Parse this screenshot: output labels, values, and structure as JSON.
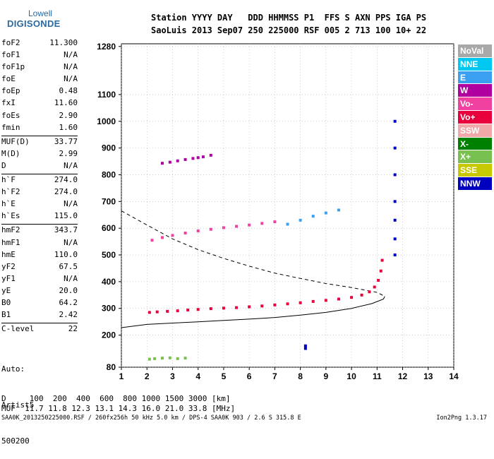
{
  "logo": {
    "top": "Lowell",
    "bottom": "DIGISONDE"
  },
  "header": {
    "line1": "Station YYYY DAY   DDD HHMMSS P1  FFS S AXN PPS IGA PS",
    "line2": "SaoLuis 2013 Sep07 250 225000 RSF 005 2 713 100 10+ 22"
  },
  "params": [
    [
      {
        "name": "foF2",
        "value": "11.300"
      },
      {
        "name": "foF1",
        "value": "N/A"
      },
      {
        "name": "foF1p",
        "value": "N/A"
      },
      {
        "name": "foE",
        "value": "N/A"
      },
      {
        "name": "foEp",
        "value": "0.48"
      },
      {
        "name": "fxI",
        "value": "11.60"
      },
      {
        "name": "foEs",
        "value": "2.90"
      },
      {
        "name": "fmin",
        "value": "1.60"
      }
    ],
    [
      {
        "name": "MUF(D)",
        "value": "33.77"
      },
      {
        "name": "M(D)",
        "value": "2.99"
      },
      {
        "name": "D",
        "value": "N/A"
      }
    ],
    [
      {
        "name": "h`F",
        "value": "274.0"
      },
      {
        "name": "h`F2",
        "value": "274.0"
      },
      {
        "name": "h`E",
        "value": "N/A"
      },
      {
        "name": "h`Es",
        "value": "115.0"
      }
    ],
    [
      {
        "name": "hmF2",
        "value": "343.7"
      },
      {
        "name": "hmF1",
        "value": "N/A"
      },
      {
        "name": "hmE",
        "value": "110.0"
      },
      {
        "name": "yF2",
        "value": "67.5"
      },
      {
        "name": "yF1",
        "value": "N/A"
      },
      {
        "name": "yE",
        "value": "20.0"
      },
      {
        "name": "B0",
        "value": "64.2"
      },
      {
        "name": "B1",
        "value": "2.42"
      }
    ],
    [
      {
        "name": "C-level",
        "value": "22"
      }
    ]
  ],
  "auto": {
    "line1": "Auto:",
    "line2": "Artist5",
    "line3": "500200"
  },
  "legend": [
    {
      "label": "NoVal",
      "color": "#a8a8a8"
    },
    {
      "label": "NNE",
      "color": "#00c8f0"
    },
    {
      "label": "E",
      "color": "#3ca0f0"
    },
    {
      "label": "W",
      "color": "#b000a0"
    },
    {
      "label": "Vo-",
      "color": "#f040a0"
    },
    {
      "label": "Vo+",
      "color": "#e8003c"
    },
    {
      "label": "SSW",
      "color": "#f0a8a8"
    },
    {
      "label": "X-",
      "color": "#008000"
    },
    {
      "label": "X+",
      "color": "#78c050"
    },
    {
      "label": "SSE",
      "color": "#c8c800"
    },
    {
      "label": "NNW",
      "color": "#0000c0"
    }
  ],
  "bottom": {
    "line1": "D     100  200  400  600  800 1000 1500 3000 [km]",
    "line2": "MUF  11.7 11.8 12.3 13.1 14.3 16.0 21.0 33.8 [MHz]"
  },
  "footer": {
    "left": "SAA0K_2013250225000.RSF / 260fx256h 50 kHz 5.0 km / DPS-4 SAA0K 903 / 2.6 S 315.8 E",
    "right": "Ion2Png 1.3.17"
  },
  "chart_data": {
    "type": "scatter",
    "xlim": [
      1,
      14
    ],
    "ylim": [
      80,
      1290
    ],
    "x_ticks": [
      1,
      2,
      3,
      4,
      5,
      6,
      7,
      8,
      9,
      10,
      11,
      12,
      13,
      14
    ],
    "y_ticks": [
      80,
      200,
      300,
      400,
      500,
      600,
      700,
      800,
      900,
      1000,
      1100,
      1280
    ],
    "grid": true,
    "series": [
      {
        "name": "Vo+",
        "color": "#e8003c",
        "points": [
          [
            2.1,
            285
          ],
          [
            2.4,
            287
          ],
          [
            2.8,
            289
          ],
          [
            3.2,
            291
          ],
          [
            3.6,
            294
          ],
          [
            4.0,
            296
          ],
          [
            4.5,
            299
          ],
          [
            5.0,
            301
          ],
          [
            5.5,
            303
          ],
          [
            6.0,
            306
          ],
          [
            6.5,
            309
          ],
          [
            7.0,
            313
          ],
          [
            7.5,
            317
          ],
          [
            8.0,
            321
          ],
          [
            8.5,
            326
          ],
          [
            9.0,
            330
          ],
          [
            9.5,
            335
          ],
          [
            10.0,
            341
          ],
          [
            10.4,
            350
          ],
          [
            10.7,
            362
          ],
          [
            10.9,
            380
          ],
          [
            11.05,
            405
          ],
          [
            11.15,
            440
          ],
          [
            11.2,
            480
          ]
        ]
      },
      {
        "name": "W",
        "color": "#b000a0",
        "points": [
          [
            2.6,
            843
          ],
          [
            2.9,
            847
          ],
          [
            3.2,
            852
          ],
          [
            3.5,
            857
          ],
          [
            3.8,
            861
          ],
          [
            4.0,
            864
          ],
          [
            4.2,
            867
          ],
          [
            4.5,
            873
          ]
        ]
      },
      {
        "name": "E",
        "color": "#3ca0f0",
        "points": [
          [
            7.5,
            615
          ],
          [
            8.0,
            630
          ],
          [
            8.5,
            645
          ],
          [
            9.0,
            657
          ],
          [
            9.5,
            668
          ]
        ]
      },
      {
        "name": "Vo-",
        "color": "#f040a0",
        "points": [
          [
            2.2,
            555
          ],
          [
            2.6,
            565
          ],
          [
            3.0,
            573
          ],
          [
            3.5,
            582
          ],
          [
            4.0,
            590
          ],
          [
            4.5,
            596
          ],
          [
            5.0,
            602
          ],
          [
            5.5,
            607
          ],
          [
            6.0,
            612
          ],
          [
            6.5,
            618
          ],
          [
            7.0,
            624
          ]
        ]
      },
      {
        "name": "NNW",
        "color": "#0000c0",
        "points": [
          [
            11.7,
            500
          ],
          [
            11.7,
            560
          ],
          [
            11.7,
            630
          ],
          [
            11.7,
            700
          ],
          [
            11.7,
            800
          ],
          [
            11.7,
            900
          ],
          [
            11.7,
            1000
          ],
          [
            8.2,
            160
          ],
          [
            8.2,
            150
          ]
        ]
      },
      {
        "name": "X+",
        "color": "#78c050",
        "points": [
          [
            2.1,
            110
          ],
          [
            2.3,
            112
          ],
          [
            2.6,
            114
          ],
          [
            2.9,
            115
          ],
          [
            3.2,
            112
          ],
          [
            3.5,
            114
          ]
        ]
      }
    ]
  }
}
